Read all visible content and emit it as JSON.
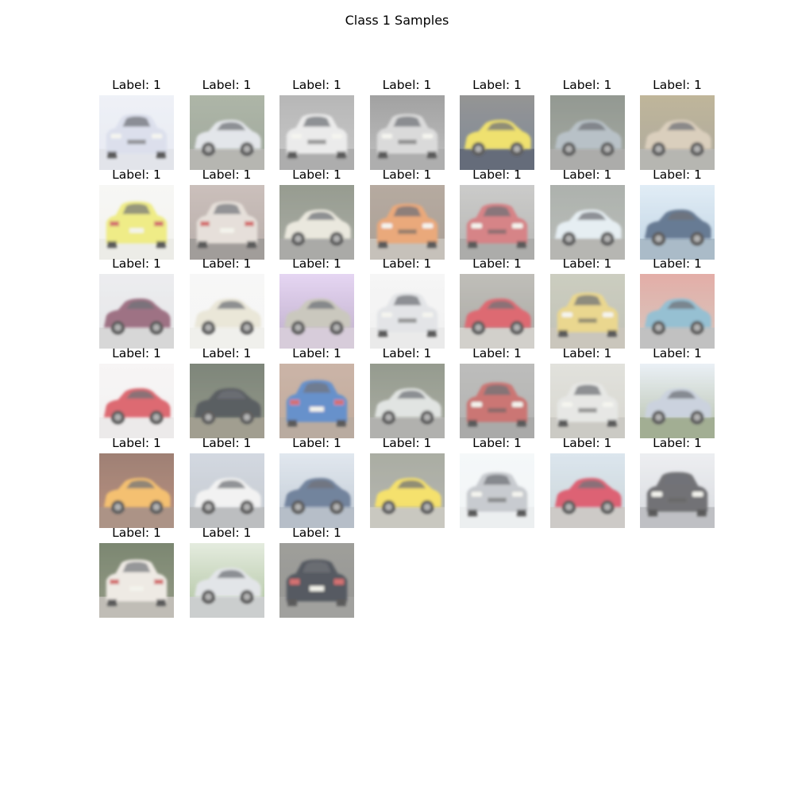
{
  "figure": {
    "title": "Class 1 Samples"
  },
  "grid": {
    "columns": 7
  },
  "samples": [
    {
      "label": "Label: 1",
      "scene": {
        "bg_top": "#e9ecf4",
        "bg_bottom": "#dfe3ee",
        "ground": "#d8dbe3",
        "car": "#cfd4e6",
        "view": "front"
      }
    },
    {
      "label": "Label: 1",
      "scene": {
        "bg_top": "#8f9a86",
        "bg_bottom": "#7c8878",
        "ground": "#9a9a94",
        "car": "#d9dde2",
        "view": "side"
      }
    },
    {
      "label": "Label: 1",
      "scene": {
        "bg_top": "#9c9c9c",
        "bg_bottom": "#b4b4b4",
        "ground": "#8e8e8e",
        "car": "#e4e4e4",
        "view": "front"
      }
    },
    {
      "label": "Label: 1",
      "scene": {
        "bg_top": "#7e7e7e",
        "bg_bottom": "#a9a9a9",
        "ground": "#8f8f8f",
        "car": "#cdcdcd",
        "view": "front"
      }
    },
    {
      "label": "Label: 1",
      "scene": {
        "bg_top": "#6c6c6c",
        "bg_bottom": "#4e5e72",
        "ground": "#2b3448",
        "car": "#e9d638",
        "view": "side"
      }
    },
    {
      "label": "Label: 1",
      "scene": {
        "bg_top": "#6a7268",
        "bg_bottom": "#838a80",
        "ground": "#8d8d8a",
        "car": "#9eaab2",
        "view": "side"
      }
    },
    {
      "label": "Label: 1",
      "scene": {
        "bg_top": "#a89a74",
        "bg_bottom": "#8e8a7a",
        "ground": "#9b9a94",
        "car": "#cdbda4",
        "view": "side"
      }
    },
    {
      "label": "Label: 1",
      "scene": {
        "bg_top": "#f4f4f2",
        "bg_bottom": "#f0efe8",
        "ground": "#e6e6de",
        "car": "#e9e55a",
        "view": "rear"
      }
    },
    {
      "label": "Label: 1",
      "scene": {
        "bg_top": "#b8a8a2",
        "bg_bottom": "#9c8f8a",
        "ground": "#7e7874",
        "car": "#ddd4cc",
        "view": "rear"
      }
    },
    {
      "label": "Label: 1",
      "scene": {
        "bg_top": "#6f7666",
        "bg_bottom": "#8b8f84",
        "ground": "#8a8a86",
        "car": "#e3e0d2",
        "view": "side"
      }
    },
    {
      "label": "Label: 1",
      "scene": {
        "bg_top": "#9a8a7c",
        "bg_bottom": "#8c7d70",
        "ground": "#b1aaa0",
        "car": "#e2884a",
        "view": "front"
      }
    },
    {
      "label": "Label: 1",
      "scene": {
        "bg_top": "#b8b8b6",
        "bg_bottom": "#9b9b98",
        "ground": "#8d8d8a",
        "car": "#c7545a",
        "view": "front"
      }
    },
    {
      "label": "Label: 1",
      "scene": {
        "bg_top": "#8e948e",
        "bg_bottom": "#a1a6a0",
        "ground": "#9a9a95",
        "car": "#dde8ee",
        "view": "side"
      }
    },
    {
      "label": "Label: 1",
      "scene": {
        "bg_top": "#d6e6f3",
        "bg_bottom": "#a8c4d9",
        "ground": "#8aa2b4",
        "car": "#2e4a6c",
        "view": "side"
      }
    },
    {
      "label": "Label: 1",
      "scene": {
        "bg_top": "#e6e7ea",
        "bg_bottom": "#dbdcdf",
        "ground": "#c9c9c9",
        "car": "#7a3e56",
        "view": "side"
      }
    },
    {
      "label": "Label: 1",
      "scene": {
        "bg_top": "#f4f4f4",
        "bg_bottom": "#f3f3f1",
        "ground": "#ebebe6",
        "car": "#e2deca",
        "view": "side"
      }
    },
    {
      "label": "Label: 1",
      "scene": {
        "bg_top": "#dcc6ee",
        "bg_bottom": "#a58fb5",
        "ground": "#c8b9cc",
        "car": "#b7b4a6",
        "view": "side"
      }
    },
    {
      "label": "Label: 1",
      "scene": {
        "bg_top": "#f3f3f3",
        "bg_bottom": "#ececec",
        "ground": "#e3e3e3",
        "car": "#d9dbdf",
        "view": "front"
      }
    },
    {
      "label": "Label: 1",
      "scene": {
        "bg_top": "#a8a69e",
        "bg_bottom": "#8b8984",
        "ground": "#c1bfb8",
        "car": "#d1323e",
        "view": "side"
      }
    },
    {
      "label": "Label: 1",
      "scene": {
        "bg_top": "#b9bba8",
        "bg_bottom": "#a9ab9d",
        "ground": "#b6b1a3",
        "car": "#e2c865",
        "view": "front"
      }
    },
    {
      "label": "Label: 1",
      "scene": {
        "bg_top": "#d98f86",
        "bg_bottom": "#c7b4a8",
        "ground": "#aaaaaa",
        "car": "#6ea8c2",
        "view": "side"
      }
    },
    {
      "label": "Label: 1",
      "scene": {
        "bg_top": "#f4f2f2",
        "bg_bottom": "#efecec",
        "ground": "#e5e2e2",
        "car": "#d0303c",
        "view": "side"
      }
    },
    {
      "label": "Label: 1",
      "scene": {
        "bg_top": "#4d5848",
        "bg_bottom": "#6c725e",
        "ground": "#7d7a66",
        "car": "#1e2126",
        "view": "side"
      }
    },
    {
      "label": "Label: 1",
      "scene": {
        "bg_top": "#b89886",
        "bg_bottom": "#a88c78",
        "ground": "#9f8c7c",
        "car": "#2f68b8",
        "view": "rear"
      }
    },
    {
      "label": "Label: 1",
      "scene": {
        "bg_top": "#6d7564",
        "bg_bottom": "#8c9082",
        "ground": "#949490",
        "car": "#d6dad7",
        "view": "side"
      }
    },
    {
      "label": "Label: 1",
      "scene": {
        "bg_top": "#a4a4a2",
        "bg_bottom": "#979795",
        "ground": "#8a8a88",
        "car": "#b8433f",
        "view": "front"
      }
    },
    {
      "label": "Label: 1",
      "scene": {
        "bg_top": "#d7d7d0",
        "bg_bottom": "#c8c7bd",
        "ground": "#b8b6ae",
        "car": "#dedfdc",
        "view": "front"
      }
    },
    {
      "label": "Label: 1",
      "scene": {
        "bg_top": "#e3ebf3",
        "bg_bottom": "#9aa88a",
        "ground": "#7f8f6a",
        "car": "#b8c2d2",
        "view": "side"
      }
    },
    {
      "label": "Label: 1",
      "scene": {
        "bg_top": "#7a5040",
        "bg_bottom": "#a06850",
        "ground": "#8d6a58",
        "car": "#f0a83a",
        "view": "side"
      }
    },
    {
      "label": "Label: 1",
      "scene": {
        "bg_top": "#c2cad6",
        "bg_bottom": "#b0b6bd",
        "ground": "#a3a6a9",
        "car": "#eeeeee",
        "view": "side"
      }
    },
    {
      "label": "Label: 1",
      "scene": {
        "bg_top": "#d6dfe9",
        "bg_bottom": "#aab6c4",
        "ground": "#9aa6b4",
        "car": "#3c5478",
        "view": "side"
      }
    },
    {
      "label": "Label: 1",
      "scene": {
        "bg_top": "#8a8e80",
        "bg_bottom": "#9b9c94",
        "ground": "#b5b3a8",
        "car": "#f2d636",
        "view": "side"
      }
    },
    {
      "label": "Label: 1",
      "scene": {
        "bg_top": "#f2f6f8",
        "bg_bottom": "#edf1f3",
        "ground": "#e6e9eb",
        "car": "#b4b8be",
        "view": "front"
      }
    },
    {
      "label": "Label: 1",
      "scene": {
        "bg_top": "#cfdde8",
        "bg_bottom": "#b7c5c9",
        "ground": "#bab7b2",
        "car": "#d02840",
        "view": "side"
      }
    },
    {
      "label": "Label: 1",
      "scene": {
        "bg_top": "#e7e9ed",
        "bg_bottom": "#c9ccd2",
        "ground": "#a7a9ae",
        "car": "#3e3e42",
        "view": "front"
      }
    },
    {
      "label": "Label: 1",
      "scene": {
        "bg_top": "#4a5a3c",
        "bg_bottom": "#6c7458",
        "ground": "#a8a49a",
        "car": "#e8e2da",
        "view": "rear"
      }
    },
    {
      "label": "Label: 1",
      "scene": {
        "bg_top": "#dbe5d3",
        "bg_bottom": "#8fab7a",
        "ground": "#b8bcbc",
        "car": "#d8dce0",
        "view": "side"
      }
    },
    {
      "label": "Label: 1",
      "scene": {
        "bg_top": "#7a7a74",
        "bg_bottom": "#6f6f6b",
        "ground": "#7e7e7a",
        "car": "#181c26",
        "view": "rear"
      }
    }
  ]
}
